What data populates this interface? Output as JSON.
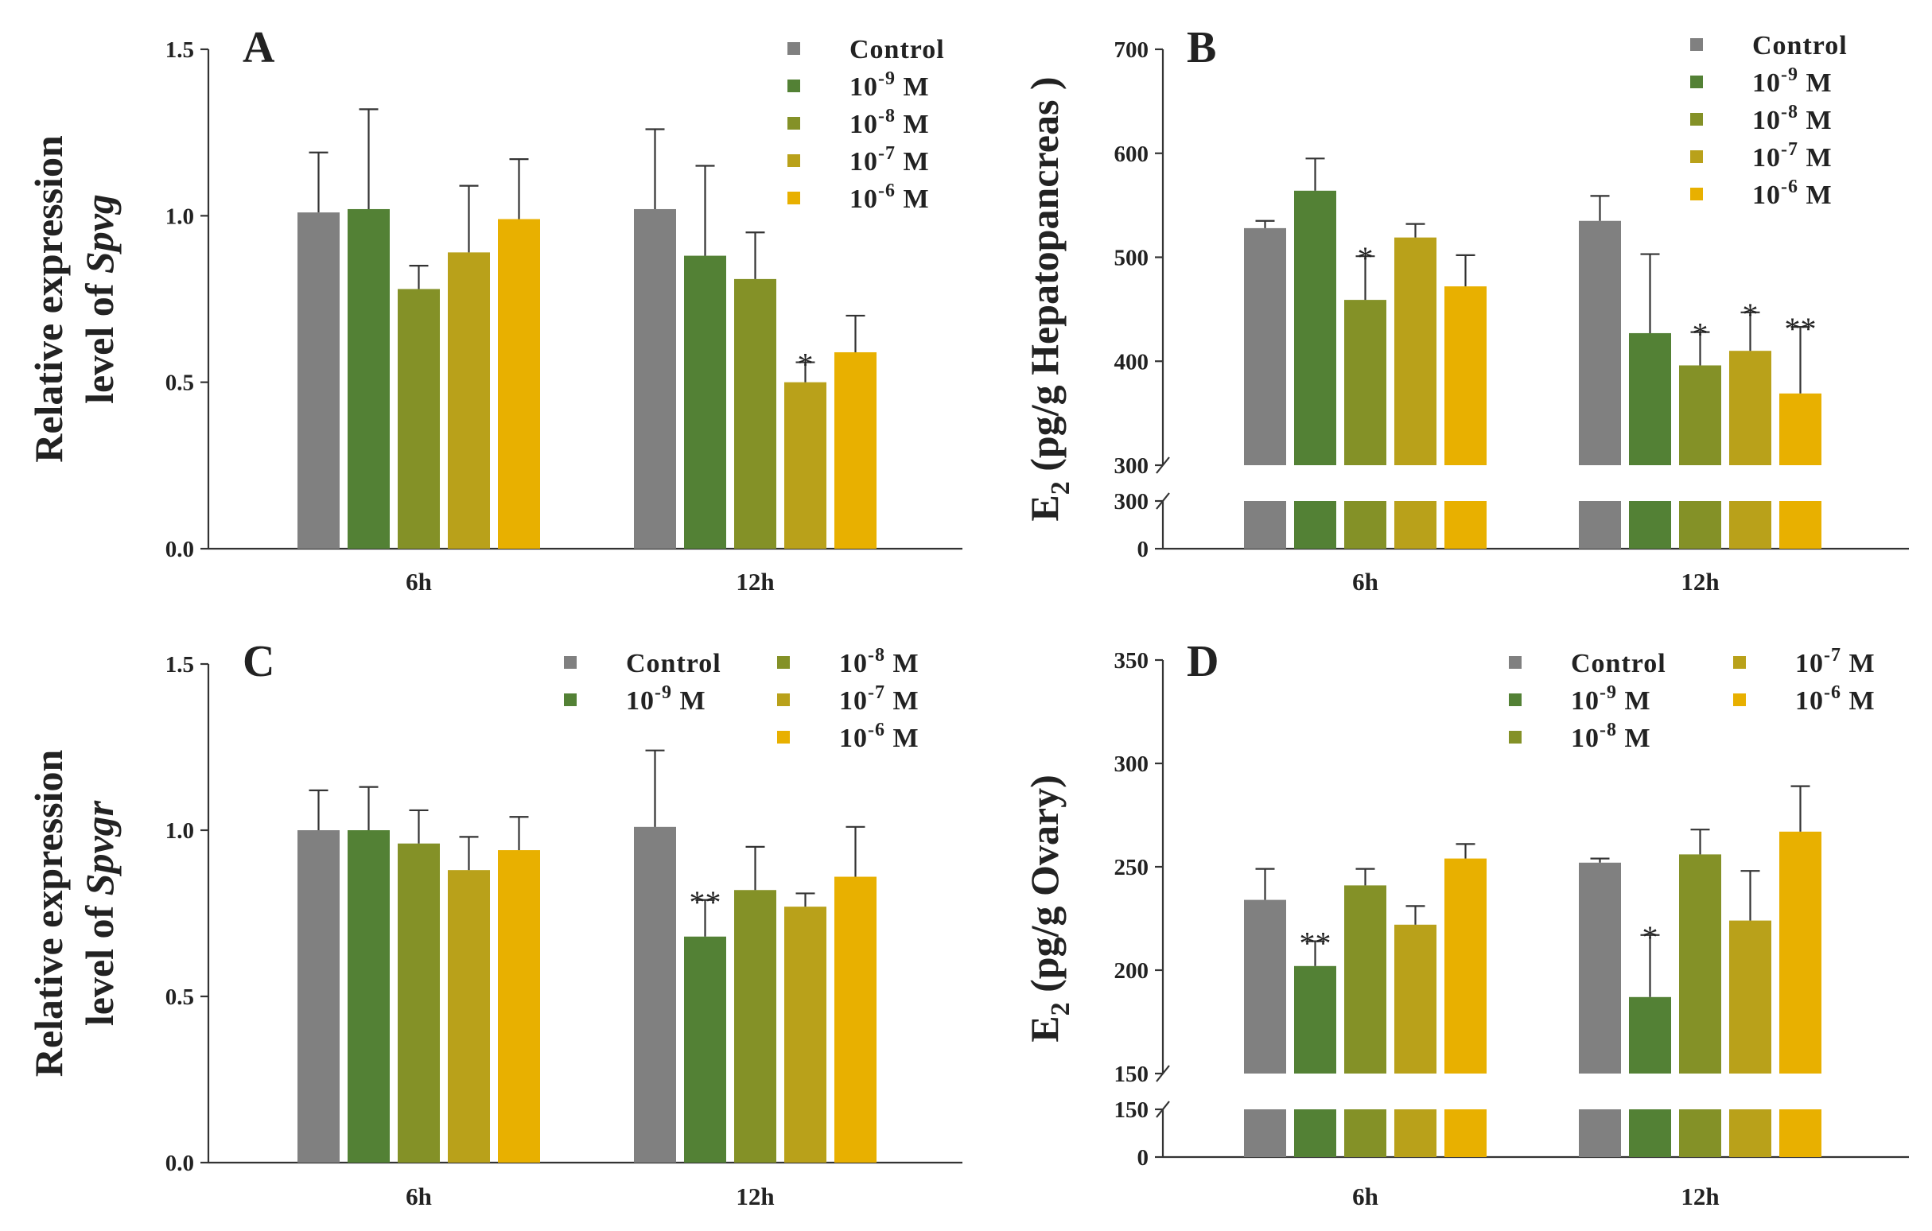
{
  "series_colors": {
    "Control": "#808080",
    "10^-9 M": "#538135",
    "10^-8 M": "#849127",
    "10^-7 M": "#b9a11a",
    "10^-6 M": "#e8b000"
  },
  "legend": [
    {
      "key": "Control",
      "text": "Control",
      "base": "",
      "exp": ""
    },
    {
      "key": "10^-9 M",
      "text": "",
      "base": "10",
      "exp": "-9",
      "unit": " M"
    },
    {
      "key": "10^-8 M",
      "text": "",
      "base": "10",
      "exp": "-8",
      "unit": " M"
    },
    {
      "key": "10^-7 M",
      "text": "",
      "base": "10",
      "exp": "-7",
      "unit": " M"
    },
    {
      "key": "10^-6 M",
      "text": "",
      "base": "10",
      "exp": "-6",
      "unit": " M"
    }
  ],
  "chart_data": [
    {
      "id": "A",
      "type": "bar",
      "panel_label": "A",
      "ylabel_line1": "Relative expression",
      "ylabel_line2_prefix": "level of ",
      "ylabel_gene": "Spvg",
      "categories": [
        "6h",
        "12h"
      ],
      "ylim": [
        0,
        1.5
      ],
      "yticks": [
        0.0,
        0.5,
        1.0,
        1.5
      ],
      "ytick_labels": [
        "0.0",
        "0.5",
        "1.0",
        "1.5"
      ],
      "series": [
        {
          "name": "Control",
          "values": [
            1.01,
            1.02
          ],
          "errors": [
            0.18,
            0.24
          ],
          "sig": [
            "",
            ""
          ]
        },
        {
          "name": "10^-9 M",
          "values": [
            1.02,
            0.88
          ],
          "errors": [
            0.3,
            0.27
          ],
          "sig": [
            "",
            ""
          ]
        },
        {
          "name": "10^-8 M",
          "values": [
            0.78,
            0.81
          ],
          "errors": [
            0.07,
            0.14
          ],
          "sig": [
            "",
            ""
          ]
        },
        {
          "name": "10^-7 M",
          "values": [
            0.89,
            0.5
          ],
          "errors": [
            0.2,
            0.06
          ],
          "sig": [
            "",
            "*"
          ]
        },
        {
          "name": "10^-6 M",
          "values": [
            0.99,
            0.59
          ],
          "errors": [
            0.18,
            0.11
          ],
          "sig": [
            "",
            ""
          ]
        }
      ]
    },
    {
      "id": "B",
      "type": "bar",
      "panel_label": "B",
      "ylabel_e": "E",
      "ylabel_sub": "2",
      "ylabel_rest": " (pg/g Hepatopancreas )",
      "categories": [
        "6h",
        "12h"
      ],
      "broken_axis": true,
      "lower_ylim": [
        0,
        300
      ],
      "upper_ylim": [
        300,
        700
      ],
      "lower_ticks": [
        0,
        300
      ],
      "upper_ticks": [
        300,
        400,
        500,
        600,
        700
      ],
      "lower_tick_labels": [
        "0",
        "300"
      ],
      "upper_tick_labels": [
        "300",
        "400",
        "500",
        "600",
        "700"
      ],
      "series": [
        {
          "name": "Control",
          "values": [
            528,
            535
          ],
          "errors": [
            7,
            24
          ],
          "sig": [
            "",
            ""
          ]
        },
        {
          "name": "10^-9 M",
          "values": [
            564,
            427
          ],
          "errors": [
            31,
            76
          ],
          "sig": [
            "",
            ""
          ]
        },
        {
          "name": "10^-8 M",
          "values": [
            459,
            396
          ],
          "errors": [
            42,
            32
          ],
          "sig": [
            "*",
            "*"
          ]
        },
        {
          "name": "10^-7 M",
          "values": [
            519,
            410
          ],
          "errors": [
            13,
            37
          ],
          "sig": [
            "",
            "*"
          ]
        },
        {
          "name": "10^-6 M",
          "values": [
            472,
            369
          ],
          "errors": [
            30,
            64
          ],
          "sig": [
            "",
            "**"
          ]
        }
      ]
    },
    {
      "id": "C",
      "type": "bar",
      "panel_label": "C",
      "ylabel_line1": "Relative expression",
      "ylabel_line2_prefix": "level of ",
      "ylabel_gene": "Spvgr",
      "categories": [
        "6h",
        "12h"
      ],
      "ylim": [
        0,
        1.5
      ],
      "yticks": [
        0.0,
        0.5,
        1.0,
        1.5
      ],
      "ytick_labels": [
        "0.0",
        "0.5",
        "1.0",
        "1.5"
      ],
      "series": [
        {
          "name": "Control",
          "values": [
            1.0,
            1.01
          ],
          "errors": [
            0.12,
            0.23
          ],
          "sig": [
            "",
            ""
          ]
        },
        {
          "name": "10^-9 M",
          "values": [
            1.0,
            0.68
          ],
          "errors": [
            0.13,
            0.11
          ],
          "sig": [
            "",
            "**"
          ]
        },
        {
          "name": "10^-8 M",
          "values": [
            0.96,
            0.82
          ],
          "errors": [
            0.1,
            0.13
          ],
          "sig": [
            "",
            ""
          ]
        },
        {
          "name": "10^-7 M",
          "values": [
            0.88,
            0.77
          ],
          "errors": [
            0.1,
            0.04
          ],
          "sig": [
            "",
            ""
          ]
        },
        {
          "name": "10^-6 M",
          "values": [
            0.94,
            0.86
          ],
          "errors": [
            0.1,
            0.15
          ],
          "sig": [
            "",
            ""
          ]
        }
      ]
    },
    {
      "id": "D",
      "type": "bar",
      "panel_label": "D",
      "ylabel_e": "E",
      "ylabel_sub": "2",
      "ylabel_rest": " (pg/g Ovary)",
      "categories": [
        "6h",
        "12h"
      ],
      "broken_axis": true,
      "lower_ylim": [
        0,
        150
      ],
      "upper_ylim": [
        150,
        350
      ],
      "lower_ticks": [
        0,
        150
      ],
      "upper_ticks": [
        150,
        200,
        250,
        300,
        350
      ],
      "lower_tick_labels": [
        "0",
        "150"
      ],
      "upper_tick_labels": [
        "150",
        "200",
        "250",
        "300",
        "350"
      ],
      "series": [
        {
          "name": "Control",
          "values": [
            234,
            252
          ],
          "errors": [
            15,
            2
          ],
          "sig": [
            "",
            ""
          ]
        },
        {
          "name": "10^-9 M",
          "values": [
            202,
            187
          ],
          "errors": [
            12,
            30
          ],
          "sig": [
            "**",
            "*"
          ]
        },
        {
          "name": "10^-8 M",
          "values": [
            241,
            256
          ],
          "errors": [
            8,
            12
          ],
          "sig": [
            "",
            ""
          ]
        },
        {
          "name": "10^-7 M",
          "values": [
            222,
            224
          ],
          "errors": [
            9,
            24
          ],
          "sig": [
            "",
            ""
          ]
        },
        {
          "name": "10^-6 M",
          "values": [
            254,
            267
          ],
          "errors": [
            7,
            22
          ],
          "sig": [
            "",
            ""
          ]
        }
      ]
    }
  ]
}
